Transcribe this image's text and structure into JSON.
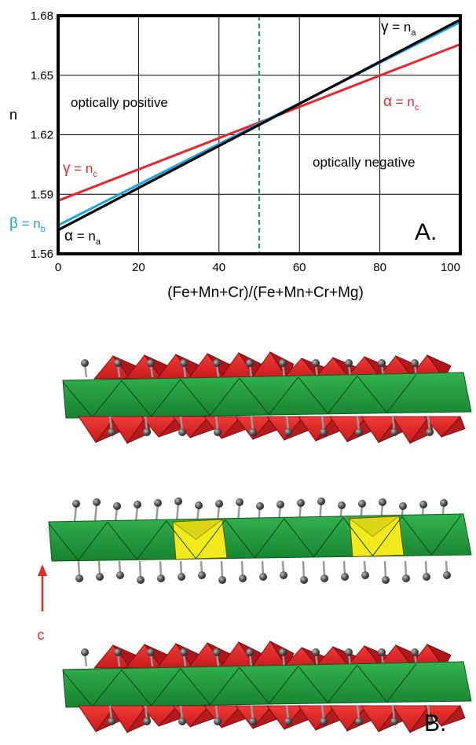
{
  "chart_data": {
    "type": "line",
    "title": "",
    "xlabel": "(Fe+Mn+Cr)/(Fe+Mn+Cr+Mg)",
    "ylabel": "n",
    "xlim": [
      0,
      100
    ],
    "ylim": [
      1.56,
      1.68
    ],
    "x_ticks": [
      "0",
      "20",
      "40",
      "60",
      "80",
      "100"
    ],
    "y_ticks": [
      "1.56",
      "1.59",
      "1.62",
      "1.65",
      "1.68"
    ],
    "grid": true,
    "panel_label": "A.",
    "regions": [
      {
        "label": "optically positive"
      },
      {
        "label": "optically negative"
      }
    ],
    "reference_line": {
      "x": 50,
      "style": "dashed",
      "color": "#1a9a4a"
    },
    "series": [
      {
        "label_symbol": "α",
        "label_eq": " = n",
        "label_sub": "c",
        "color": "#e8262b",
        "x": [
          0,
          100
        ],
        "y": [
          1.5868,
          1.6656
        ]
      },
      {
        "label_symbol": "β",
        "label_eq": " = n",
        "label_sub": "b",
        "color": "#1aa6de",
        "x": [
          0,
          100
        ],
        "y": [
          1.5744,
          1.6768
        ]
      },
      {
        "label_symbol": "γ",
        "label_eq": " = n",
        "label_sub": "a",
        "color": "#000000",
        "x": [
          0,
          100
        ],
        "y": [
          1.572,
          1.678
        ]
      }
    ],
    "line_labels": [
      {
        "symbol": "γ",
        "eq": " = n",
        "sub": "a",
        "color": "#000000"
      },
      {
        "symbol": "α",
        "eq": " = n",
        "sub": "c",
        "color": "#e8262b"
      },
      {
        "symbol": "γ",
        "eq": " = n",
        "sub": "c",
        "color": "#e8262b"
      },
      {
        "symbol": "β",
        "eq": " = n",
        "sub": "b",
        "color": "#1aa6de"
      },
      {
        "symbol": "α",
        "eq": " = n",
        "sub": "a",
        "color": "#000000"
      }
    ]
  },
  "structure": {
    "panel_label": "B.",
    "axis_label": "c",
    "colors": {
      "tetrahedra": "#e8262b",
      "octahedra": "#1f9a3e",
      "yellow_octahedra": "#f2ea1a",
      "atoms": "#555555"
    }
  }
}
